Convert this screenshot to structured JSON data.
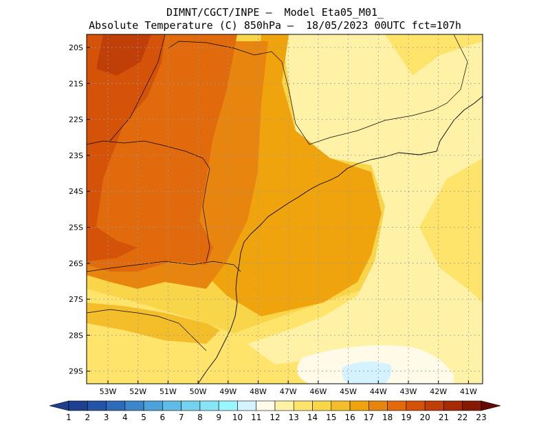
{
  "header": {
    "line1": "DIMNT/CGCT/INPE —  Model Eta05_M01_",
    "line2": "Absolute Temperature (C) 850hPa —  18/05/2023 00UTC fct=107h"
  },
  "map": {
    "lon_labels": [
      "53W",
      "52W",
      "51W",
      "50W",
      "49W",
      "48W",
      "47W",
      "46W",
      "45W",
      "44W",
      "43W",
      "42W",
      "41W"
    ],
    "lat_labels": [
      "20S",
      "21S",
      "22S",
      "23S",
      "24S",
      "25S",
      "26S",
      "27S",
      "28S",
      "29S"
    ]
  },
  "colorbar": {
    "labels": [
      "1",
      "2",
      "3",
      "4",
      "5",
      "6",
      "7",
      "8",
      "9",
      "10",
      "11",
      "12",
      "13",
      "14",
      "15",
      "16",
      "17",
      "18",
      "19",
      "20",
      "21",
      "22",
      "23"
    ],
    "colors": [
      "#1f3f8f",
      "#2553a6",
      "#2e6bb8",
      "#3d86c8",
      "#4ea2d8",
      "#60bce6",
      "#74d2ee",
      "#86e4f4",
      "#9af6ff",
      "#d4f2ff",
      "#fffbe8",
      "#fff2a6",
      "#ffe46b",
      "#f9d54a",
      "#f4bd2a",
      "#efa40e",
      "#e8850f",
      "#e06a0c",
      "#d45309",
      "#c03e07",
      "#a42b05",
      "#861904",
      "#650b03"
    ]
  }
}
